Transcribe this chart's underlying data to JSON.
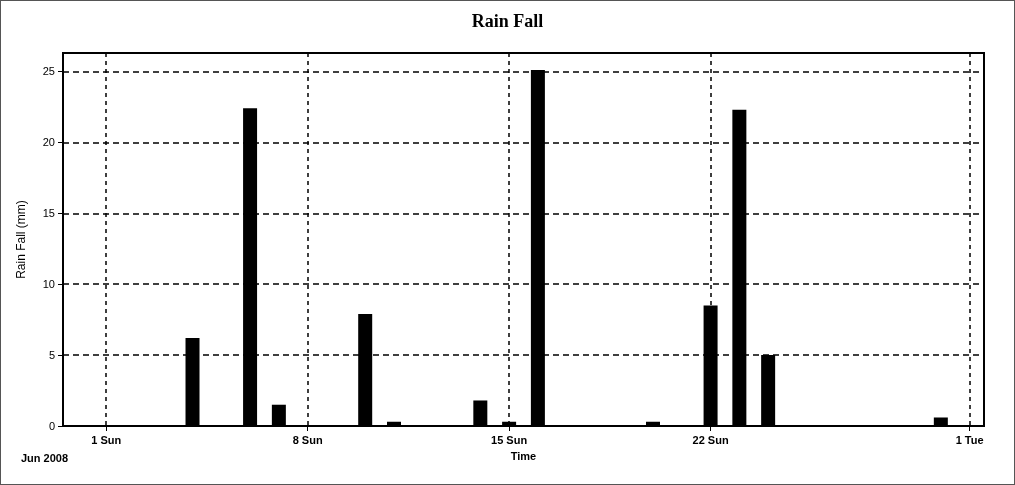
{
  "chart_data": {
    "type": "bar",
    "title": "Rain Fall",
    "xlabel": "Time",
    "ylabel": "Rain Fall (mm)",
    "x": [
      "2008-06-04",
      "2008-06-06",
      "2008-06-07",
      "2008-06-10",
      "2008-06-11",
      "2008-06-14",
      "2008-06-15",
      "2008-06-16",
      "2008-06-20",
      "2008-06-22",
      "2008-06-23",
      "2008-06-24",
      "2008-06-30"
    ],
    "values": [
      6.2,
      22.4,
      1.5,
      7.9,
      0.3,
      1.8,
      0.3,
      25.1,
      0.3,
      8.5,
      22.3,
      5.0,
      0.6
    ],
    "color": "#000000",
    "xlim": [
      "2008-05-30T12:00",
      "2008-07-01T12:00"
    ],
    "xticks": [
      {
        "value": "2008-06-01",
        "label": "1 Sun"
      },
      {
        "value": "2008-06-08",
        "label": "8 Sun"
      },
      {
        "value": "2008-06-15",
        "label": "15 Sun"
      },
      {
        "value": "2008-06-22",
        "label": "22 Sun"
      },
      {
        "value": "2008-07-01",
        "label": "1 Tue"
      }
    ],
    "ylim": [
      0,
      26.3
    ],
    "yticks": [
      0,
      5,
      10,
      15,
      20,
      25
    ],
    "annotations": [
      "Jun 2008"
    ],
    "grid": true
  }
}
